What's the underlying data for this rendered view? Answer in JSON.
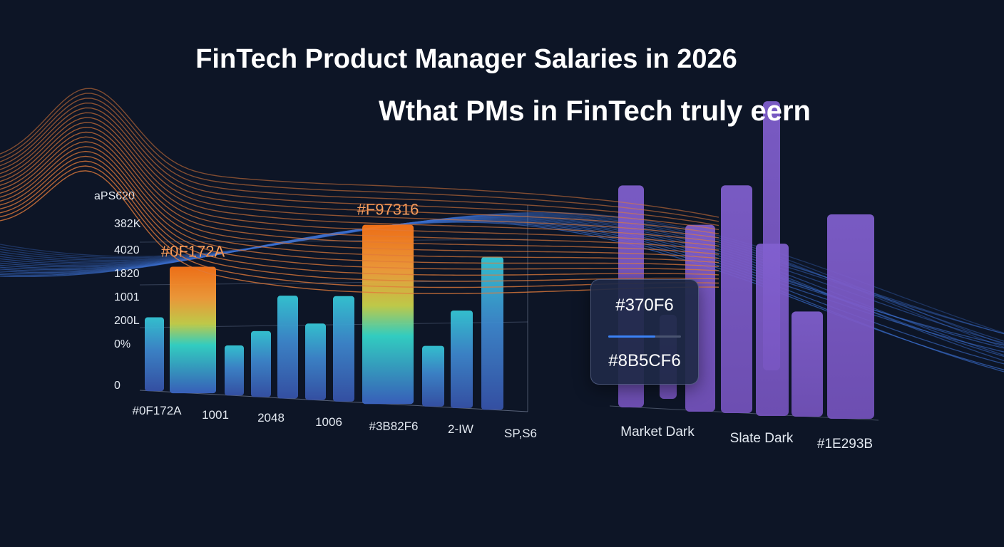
{
  "header": {
    "title": "FinTech Product Manager Salaries in 2026",
    "subtitle": "Wthat PMs in FinTech truly eern"
  },
  "colors": {
    "background": "#0d1526",
    "wave_orange": "#e07a3a",
    "wave_blue": "#3b6fd0",
    "bar_blue": "#3b5fb8",
    "bar_cyan": "#2fd6d8",
    "bar_orange": "#f97316",
    "bar_purple": "#7c5cc4",
    "label_orange": "#f9a060",
    "text": "#ffffff",
    "axis_text": "#e2e8f0"
  },
  "tooltip": {
    "top_label": "#370F6",
    "bottom_label": "#8B5CF6",
    "progress": 0.65
  },
  "chart_data": [
    {
      "type": "bar",
      "y_tick_labels": [
        "0",
        "0%",
        "200L",
        "1001",
        "1820",
        "4020",
        "382K",
        "aPS620"
      ],
      "x_tick_labels": [
        "#0F172A",
        "1001",
        "2048",
        "1006",
        "#3B82F6",
        "2-IW",
        "SP,S6"
      ],
      "series": [
        {
          "values": [
            0.28,
            0.48,
            0.19,
            0.25,
            0.39,
            0.29,
            0.4,
            0.68,
            0.23,
            0.37,
            0.58
          ],
          "data_labels": [
            "",
            "#0F172A",
            "",
            "",
            "",
            "",
            "",
            "#F97316",
            "",
            "",
            ""
          ],
          "highlight": [
            false,
            true,
            false,
            false,
            false,
            false,
            false,
            true,
            false,
            false,
            false
          ]
        }
      ]
    },
    {
      "type": "bar",
      "x_tick_labels": [
        "Market Dark",
        "Slate Dark",
        "#1E293B"
      ],
      "series": [
        {
          "values": [
            0.76,
            0.4,
            0.64,
            0.78,
            0.95,
            0.59,
            0.36,
            0.7
          ]
        }
      ]
    }
  ]
}
